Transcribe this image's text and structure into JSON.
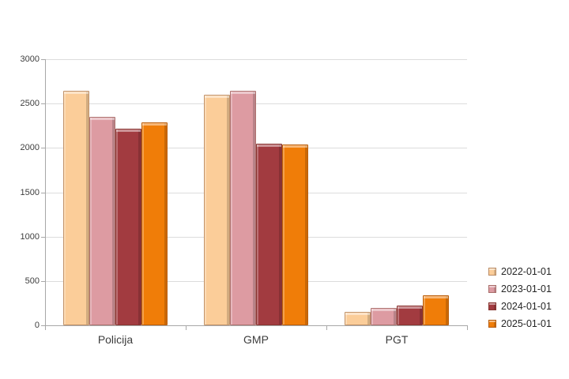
{
  "chart_data": {
    "type": "bar",
    "title": "",
    "xlabel": "",
    "ylabel": "",
    "categories": [
      "Policija",
      "GMP",
      "PGT"
    ],
    "series": [
      {
        "name": "2022-01-01",
        "color": "#fbcd99",
        "values": [
          2640,
          2600,
          150
        ]
      },
      {
        "name": "2023-01-01",
        "color": "#dd9ba2",
        "values": [
          2350,
          2640,
          200
        ]
      },
      {
        "name": "2024-01-01",
        "color": "#a23b40",
        "values": [
          2220,
          2050,
          220
        ]
      },
      {
        "name": "2025-01-01",
        "color": "#f07d08",
        "values": [
          2290,
          2040,
          340
        ]
      }
    ],
    "ylim": [
      0,
      3000
    ],
    "yticks": [
      "0",
      "500",
      "1000",
      "1500",
      "2000",
      "2500",
      "3000"
    ],
    "grid": true,
    "legend_position": "right",
    "colors": {
      "gridline": "#dcdcdc",
      "axis": "#a8a8a8",
      "text": "#3d3d3d",
      "background": "#ffffff"
    }
  }
}
